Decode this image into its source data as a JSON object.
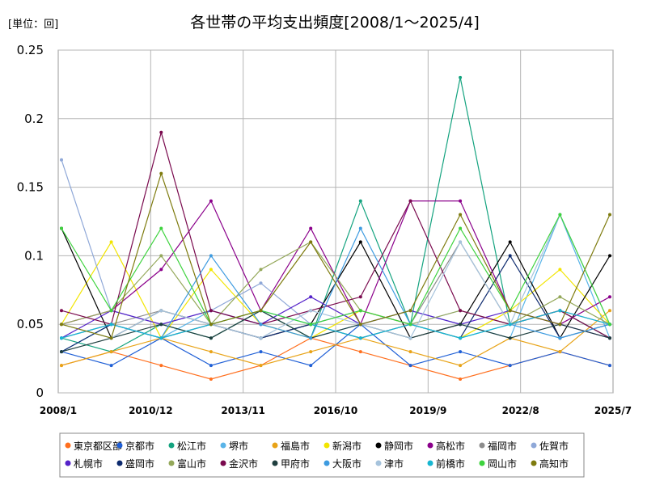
{
  "chart_data": {
    "type": "line",
    "title": "各世帯の平均支出頻度[2008/1～2025/4]",
    "unit_label": "[単位：回]",
    "xlabel": "",
    "ylabel": "",
    "ylim": [
      0,
      0.25
    ],
    "y_ticks": [
      0,
      0.05,
      0.1,
      0.15,
      0.2,
      0.25
    ],
    "y_tick_labels": [
      "0",
      "0.05",
      "0.1",
      "0.15",
      "0.2",
      "0.25"
    ],
    "x_range": [
      "2008/1",
      "2025/7"
    ],
    "x_ticks": [
      "2008/1",
      "2010/12",
      "2013/11",
      "2016/10",
      "2019/9",
      "2022/8",
      "2025/7"
    ],
    "grid": true,
    "legend_position": "bottom",
    "series": [
      {
        "name": "東京都区部",
        "color": "#ff6f1e",
        "values": [
          0.02,
          0.03,
          0.02,
          0.01,
          0.02,
          0.04,
          0.03,
          0.02,
          0.01,
          0.02,
          0.03,
          0.02
        ]
      },
      {
        "name": "京都市",
        "color": "#1f5fd6",
        "values": [
          0.03,
          0.02,
          0.04,
          0.02,
          0.03,
          0.02,
          0.05,
          0.02,
          0.03,
          0.02,
          0.03,
          0.02
        ]
      },
      {
        "name": "松江市",
        "color": "#14a37f",
        "values": [
          0.04,
          0.03,
          0.05,
          0.04,
          0.06,
          0.04,
          0.14,
          0.05,
          0.23,
          0.05,
          0.06,
          0.04
        ]
      },
      {
        "name": "堺市",
        "color": "#5ab4e8",
        "values": [
          0.03,
          0.05,
          0.04,
          0.06,
          0.05,
          0.04,
          0.05,
          0.06,
          0.05,
          0.04,
          0.13,
          0.04
        ]
      },
      {
        "name": "福島市",
        "color": "#e8a317",
        "values": [
          0.02,
          0.03,
          0.04,
          0.03,
          0.02,
          0.03,
          0.04,
          0.03,
          0.02,
          0.04,
          0.03,
          0.06
        ]
      },
      {
        "name": "新潟市",
        "color": "#f2e500",
        "values": [
          0.05,
          0.11,
          0.04,
          0.09,
          0.05,
          0.04,
          0.06,
          0.05,
          0.04,
          0.06,
          0.09,
          0.05
        ]
      },
      {
        "name": "静岡市",
        "color": "#000000",
        "values": [
          0.12,
          0.04,
          0.06,
          0.05,
          0.04,
          0.05,
          0.11,
          0.04,
          0.05,
          0.11,
          0.04,
          0.1
        ]
      },
      {
        "name": "高松市",
        "color": "#8b008b",
        "values": [
          0.05,
          0.06,
          0.09,
          0.14,
          0.06,
          0.12,
          0.05,
          0.14,
          0.14,
          0.06,
          0.05,
          0.07
        ]
      },
      {
        "name": "福岡市",
        "color": "#8c8c8c",
        "values": [
          0.04,
          0.05,
          0.06,
          0.05,
          0.04,
          0.05,
          0.06,
          0.05,
          0.11,
          0.05,
          0.06,
          0.05
        ]
      },
      {
        "name": "佐賀市",
        "color": "#8fa8d8",
        "values": [
          0.17,
          0.06,
          0.05,
          0.06,
          0.08,
          0.05,
          0.06,
          0.05,
          0.06,
          0.05,
          0.06,
          0.05
        ]
      },
      {
        "name": "札幌市",
        "color": "#5522c9",
        "values": [
          0.04,
          0.06,
          0.05,
          0.06,
          0.05,
          0.07,
          0.05,
          0.06,
          0.05,
          0.06,
          0.05,
          0.04
        ]
      },
      {
        "name": "盛岡市",
        "color": "#0d2a6e",
        "values": [
          0.03,
          0.05,
          0.04,
          0.05,
          0.04,
          0.05,
          0.04,
          0.05,
          0.04,
          0.1,
          0.04,
          0.05
        ]
      },
      {
        "name": "富山市",
        "color": "#94a85a",
        "values": [
          0.05,
          0.06,
          0.1,
          0.05,
          0.09,
          0.11,
          0.06,
          0.05,
          0.06,
          0.05,
          0.07,
          0.05
        ]
      },
      {
        "name": "金沢市",
        "color": "#7a0a4e",
        "values": [
          0.06,
          0.05,
          0.19,
          0.06,
          0.05,
          0.06,
          0.07,
          0.14,
          0.06,
          0.05,
          0.06,
          0.04
        ]
      },
      {
        "name": "甲府市",
        "color": "#1f3f3f",
        "values": [
          0.03,
          0.04,
          0.05,
          0.04,
          0.06,
          0.04,
          0.05,
          0.04,
          0.05,
          0.04,
          0.05,
          0.04
        ]
      },
      {
        "name": "大阪市",
        "color": "#3d9be0",
        "values": [
          0.04,
          0.05,
          0.04,
          0.1,
          0.05,
          0.04,
          0.12,
          0.05,
          0.04,
          0.05,
          0.04,
          0.05
        ]
      },
      {
        "name": "津市",
        "color": "#a6c3dc",
        "values": [
          0.05,
          0.04,
          0.06,
          0.05,
          0.04,
          0.06,
          0.05,
          0.04,
          0.11,
          0.05,
          0.13,
          0.05
        ]
      },
      {
        "name": "前橋市",
        "color": "#17b6d1",
        "values": [
          0.04,
          0.05,
          0.04,
          0.05,
          0.06,
          0.05,
          0.04,
          0.05,
          0.04,
          0.05,
          0.06,
          0.05
        ]
      },
      {
        "name": "岡山市",
        "color": "#3ed33e",
        "values": [
          0.12,
          0.06,
          0.12,
          0.05,
          0.06,
          0.05,
          0.06,
          0.05,
          0.12,
          0.06,
          0.13,
          0.05
        ]
      },
      {
        "name": "高知市",
        "color": "#7e7b0e",
        "values": [
          0.05,
          0.04,
          0.16,
          0.05,
          0.06,
          0.11,
          0.05,
          0.06,
          0.13,
          0.06,
          0.05,
          0.13
        ]
      }
    ]
  }
}
